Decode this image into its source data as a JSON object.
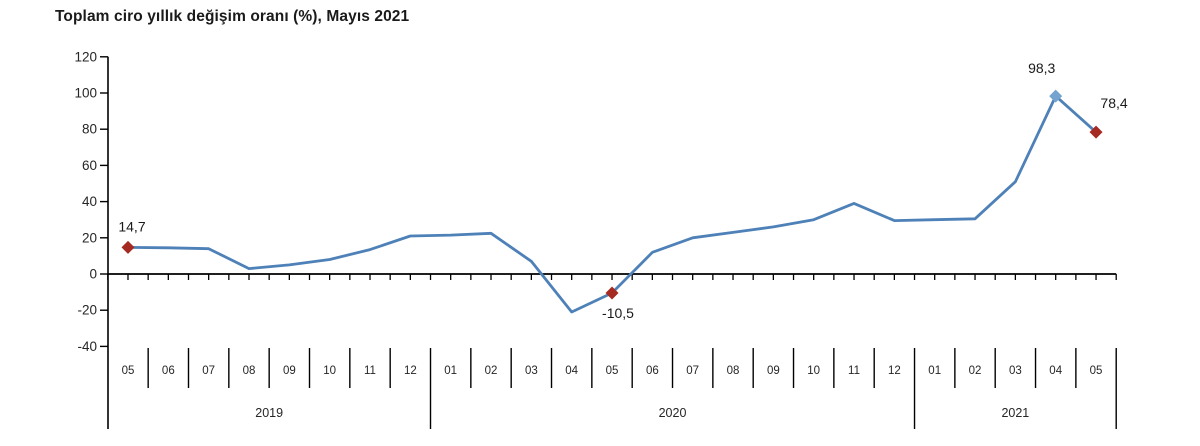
{
  "title": "Toplam ciro yıllık değişim oranı (%), Mayıs 2021",
  "chart_data": {
    "type": "line",
    "title": "Toplam ciro yıllık değişim oranı (%), Mayıs 2021",
    "x": [
      "2019-05",
      "2019-06",
      "2019-07",
      "2019-08",
      "2019-09",
      "2019-10",
      "2019-11",
      "2019-12",
      "2020-01",
      "2020-02",
      "2020-03",
      "2020-04",
      "2020-05",
      "2020-06",
      "2020-07",
      "2020-08",
      "2020-09",
      "2020-10",
      "2020-11",
      "2020-12",
      "2021-01",
      "2021-02",
      "2021-03",
      "2021-04",
      "2021-05"
    ],
    "series": [
      {
        "name": "Toplam ciro yıllık değişim oranı (%)",
        "values": [
          14.7,
          14.5,
          14.0,
          3.0,
          5.0,
          8.0,
          13.5,
          21.0,
          21.5,
          22.5,
          7.0,
          -21.0,
          -10.5,
          12.0,
          20.0,
          23.0,
          26.0,
          30.0,
          39.0,
          29.5,
          30.0,
          30.5,
          51.0,
          98.3,
          78.4
        ]
      }
    ],
    "ylim": [
      -40,
      120
    ],
    "yticks": [
      120,
      100,
      80,
      60,
      40,
      20,
      0,
      -20,
      -40
    ],
    "grid": false,
    "legend_position": "none",
    "point_labels": [
      {
        "index": 0,
        "text": "14,7",
        "marker": "red",
        "placement": "above"
      },
      {
        "index": 12,
        "text": "-10,5",
        "marker": "red",
        "placement": "below"
      },
      {
        "index": 23,
        "text": "98,3",
        "marker": "blue",
        "placement": "above-left"
      },
      {
        "index": 24,
        "text": "78,4",
        "marker": "red",
        "placement": "above-right"
      }
    ],
    "x_axis": {
      "year_groups": [
        {
          "label": "2019",
          "months": [
            "05",
            "06",
            "07",
            "08",
            "09",
            "10",
            "11",
            "12"
          ]
        },
        {
          "label": "2020",
          "months": [
            "01",
            "02",
            "03",
            "04",
            "05",
            "06",
            "07",
            "08",
            "09",
            "10",
            "11",
            "12"
          ]
        },
        {
          "label": "2021",
          "months": [
            "01",
            "02",
            "03",
            "04",
            "05"
          ]
        }
      ]
    },
    "colors": {
      "line": "#4e81b8",
      "marker_red": "#a52a21",
      "marker_blue": "#74a3d0",
      "axis": "#000000",
      "label_text": "#1a1a1a",
      "tick_text": "#262626"
    }
  }
}
